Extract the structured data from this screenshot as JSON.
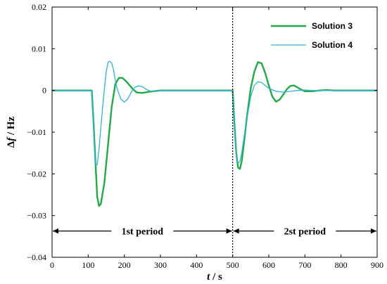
{
  "chart_data": {
    "type": "line",
    "title": "",
    "xlabel_var": "t",
    "xlabel_unit": " / s",
    "ylabel_prefix": "Δ",
    "ylabel_var": "f",
    "ylabel_unit": " / Hz",
    "xlim": [
      0,
      900
    ],
    "ylim": [
      -0.04,
      0.02
    ],
    "xticks": [
      0,
      100,
      200,
      300,
      400,
      500,
      600,
      700,
      800,
      900
    ],
    "xtick_labels": [
      "0",
      "100",
      "200",
      "300",
      "400",
      "500",
      "600",
      "700",
      "800",
      "900"
    ],
    "yticks": [
      -0.04,
      -0.03,
      -0.02,
      -0.01,
      0,
      0.01,
      0.02
    ],
    "ytick_labels": [
      "−0.04",
      "−0.03",
      "−0.02",
      "−0.01",
      "0",
      "0.01",
      "0.02"
    ],
    "grid": false,
    "legend_position": "top-right",
    "divider_x": 500,
    "annotations": [
      {
        "text": "1st period",
        "x_range": [
          0,
          500
        ],
        "y": -0.0337
      },
      {
        "text": "2st period",
        "x_range": [
          500,
          900
        ],
        "y": -0.0337
      }
    ],
    "series": [
      {
        "name": "Solution 3",
        "color": "#22aa44",
        "x": [
          0,
          100,
          110,
          115,
          120,
          125,
          130,
          135,
          145,
          155,
          165,
          175,
          185,
          195,
          205,
          215,
          225,
          235,
          250,
          270,
          300,
          400,
          499,
          500,
          505,
          510,
          515,
          520,
          525,
          530,
          540,
          550,
          560,
          570,
          580,
          590,
          600,
          610,
          620,
          630,
          640,
          650,
          660,
          670,
          680,
          690,
          700,
          720,
          740,
          760,
          780,
          800,
          900
        ],
        "y": [
          0,
          0,
          0,
          -0.008,
          -0.017,
          -0.0255,
          -0.0277,
          -0.0272,
          -0.022,
          -0.013,
          -0.004,
          0.0015,
          0.003,
          0.003,
          0.0022,
          0.0012,
          0.0002,
          -0.0005,
          -0.0006,
          -0.0003,
          0,
          0,
          0,
          0,
          -0.008,
          -0.015,
          -0.0185,
          -0.0188,
          -0.017,
          -0.0135,
          -0.006,
          0.0005,
          0.0045,
          0.0068,
          0.0065,
          0.0042,
          0.0012,
          -0.0015,
          -0.0027,
          -0.0022,
          -0.001,
          0.0003,
          0.0011,
          0.0012,
          0.0007,
          0.0002,
          -0.0002,
          -0.0002,
          0,
          0.0001,
          0,
          0,
          0
        ]
      },
      {
        "name": "Solution 4",
        "color": "#2fb3d6",
        "x": [
          0,
          100,
          110,
          115,
          120,
          125,
          130,
          135,
          140,
          145,
          150,
          155,
          160,
          165,
          170,
          175,
          180,
          190,
          200,
          210,
          220,
          230,
          240,
          250,
          260,
          270,
          280,
          300,
          320,
          400,
          499,
          500,
          505,
          510,
          515,
          520,
          525,
          530,
          540,
          550,
          560,
          570,
          580,
          590,
          600,
          620,
          640,
          660,
          680,
          700,
          720,
          800,
          900
        ],
        "y": [
          0,
          0,
          0,
          -0.009,
          -0.018,
          -0.0178,
          -0.014,
          -0.009,
          -0.004,
          0.0005,
          0.0045,
          0.0068,
          0.007,
          0.0065,
          0.005,
          0.0025,
          0.0005,
          -0.002,
          -0.0028,
          -0.002,
          -0.0003,
          0.0008,
          0.0011,
          0.0009,
          0.0003,
          -0.0001,
          -0.0002,
          0,
          0,
          0,
          0,
          0,
          -0.008,
          -0.0155,
          -0.0175,
          -0.017,
          -0.015,
          -0.012,
          -0.0065,
          -0.0015,
          0.0012,
          0.0021,
          0.0019,
          0.0012,
          0.0005,
          -0.0002,
          -0.0004,
          -0.0002,
          0,
          0.0001,
          0,
          0,
          0
        ]
      }
    ]
  }
}
